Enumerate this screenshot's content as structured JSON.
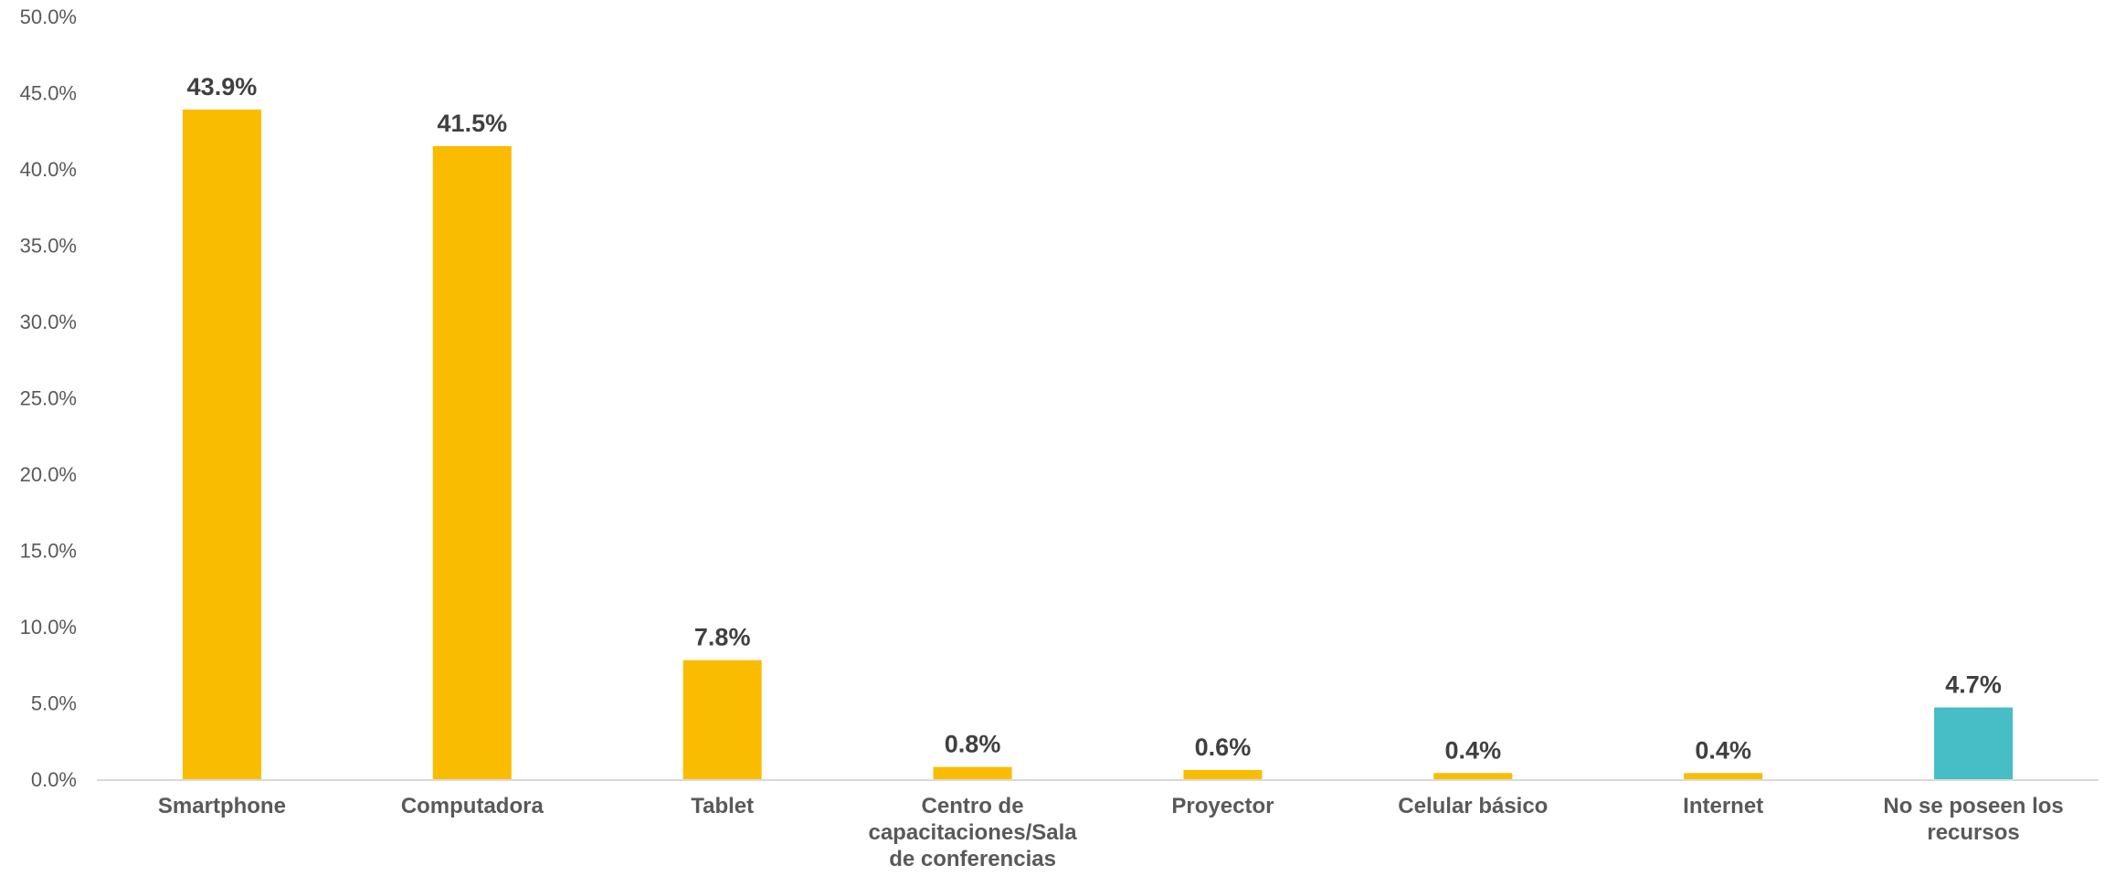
{
  "chart_data": {
    "type": "bar",
    "categories": [
      [
        "Smartphone"
      ],
      [
        "Computadora"
      ],
      [
        "Tablet"
      ],
      [
        "Centro de",
        "capacitaciones/Sala",
        "de conferencias"
      ],
      [
        "Proyector"
      ],
      [
        "Celular básico"
      ],
      [
        "Internet"
      ],
      [
        "No se poseen los",
        "recursos"
      ]
    ],
    "values": [
      43.9,
      41.5,
      7.8,
      0.8,
      0.6,
      0.4,
      0.4,
      4.7
    ],
    "data_labels": [
      "43.9%",
      "41.5%",
      "7.8%",
      "0.8%",
      "0.6%",
      "0.4%",
      "0.4%",
      "4.7%"
    ],
    "bar_colors": [
      "#F9BC00",
      "#F9BC00",
      "#F9BC00",
      "#F9BC00",
      "#F9BC00",
      "#F9BC00",
      "#F9BC00",
      "#47BDC6"
    ],
    "y_ticks": [
      "0.0%",
      "5.0%",
      "10.0%",
      "15.0%",
      "20.0%",
      "25.0%",
      "30.0%",
      "35.0%",
      "40.0%",
      "45.0%",
      "50.0%"
    ],
    "ylim": [
      0,
      50
    ],
    "grid": false,
    "title": "",
    "xlabel": "",
    "ylabel": ""
  }
}
